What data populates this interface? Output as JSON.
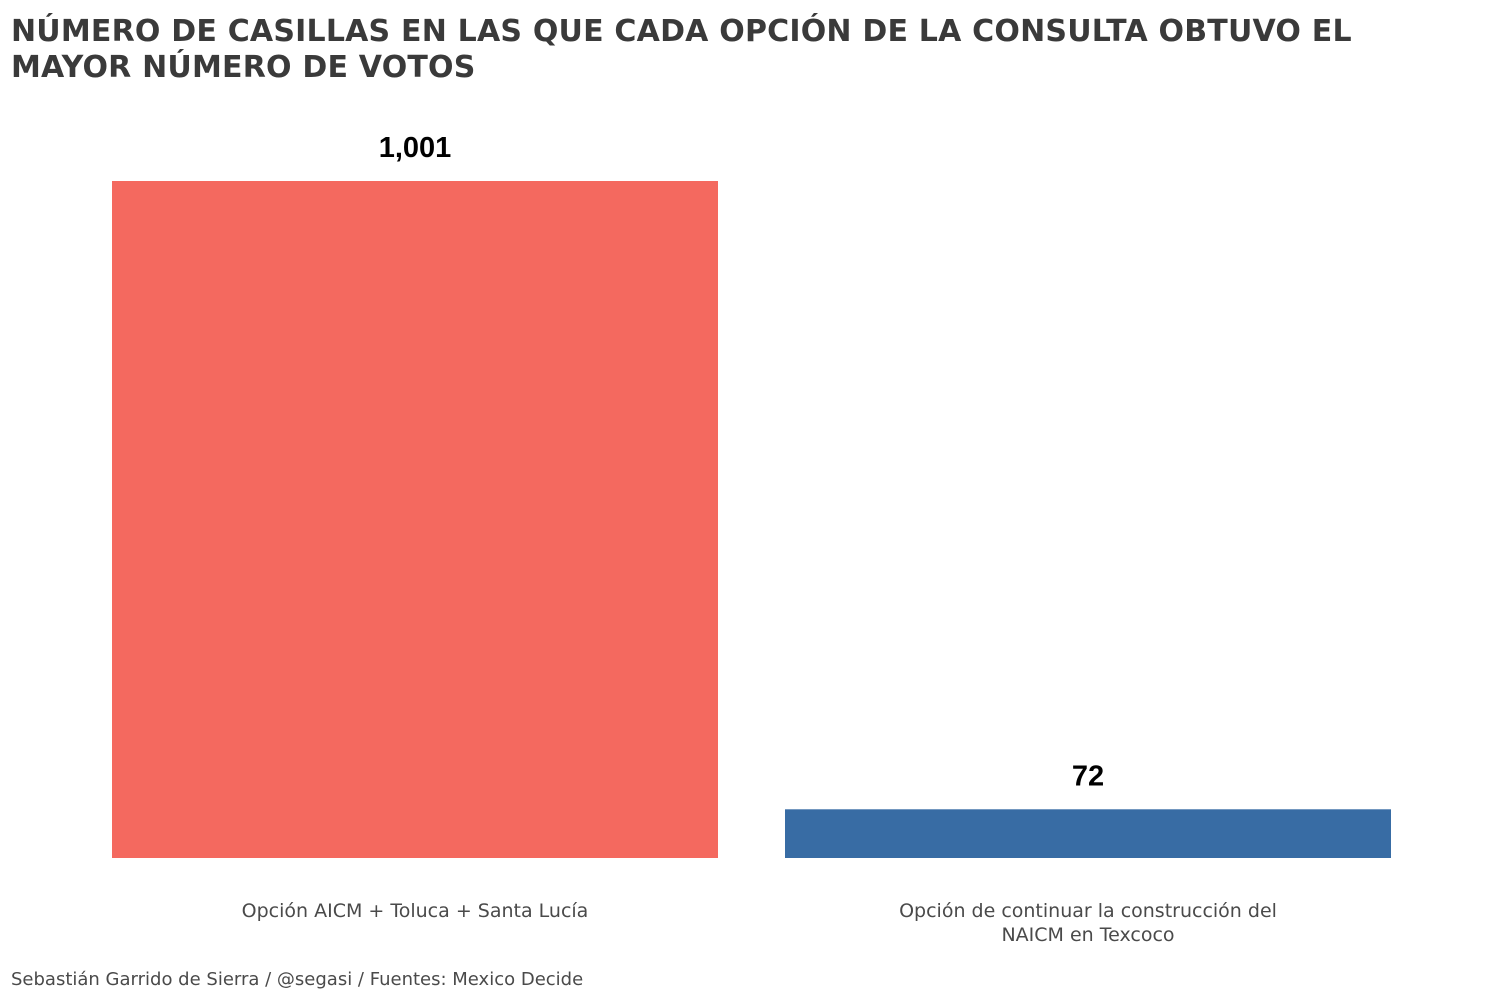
{
  "title_lines": [
    "NÚMERO DE CASILLAS EN LAS QUE CADA OPCIÓN DE LA CONSULTA OBTUVO EL",
    "MAYOR NÚMERO DE VOTOS"
  ],
  "caption": "Sebastián Garrido de Sierra / @segasi / Fuentes: Mexico Decide",
  "chart_data": {
    "type": "bar",
    "title": "NÚMERO DE CASILLAS EN LAS QUE CADA OPCIÓN DE LA CONSULTA OBTUVO EL MAYOR NÚMERO DE VOTOS",
    "categories": [
      [
        "Opción AICM + Toluca + Santa Lucía"
      ],
      [
        "Opción de continuar la construcción del",
        "NAICM en Texcoco"
      ]
    ],
    "values": [
      1001,
      72
    ],
    "value_labels": [
      "1,001",
      "72"
    ],
    "colors": [
      "#F4695F",
      "#386CA4"
    ],
    "xlabel": "",
    "ylabel": "",
    "ylim": [
      0,
      1001
    ],
    "grid": false,
    "legend": "none"
  }
}
